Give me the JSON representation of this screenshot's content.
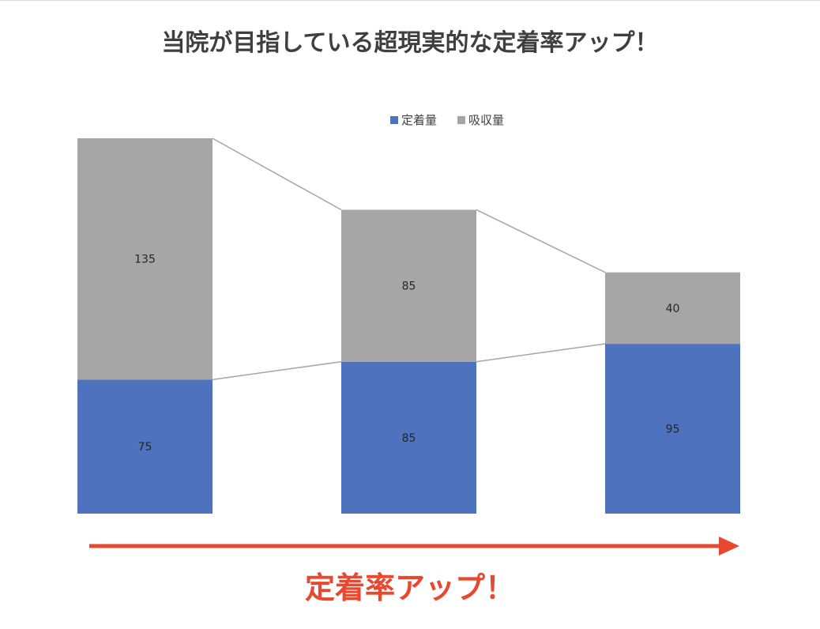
{
  "chart_data": {
    "type": "bar",
    "stacked": true,
    "title": "当院が目指している超現実的な定着率アップ！",
    "categories": [
      "",
      "",
      ""
    ],
    "series": [
      {
        "name": "定着量",
        "values": [
          75,
          85,
          95
        ],
        "color": "#4e72be"
      },
      {
        "name": "吸収量",
        "values": [
          135,
          85,
          40
        ],
        "color": "#a6a6a6"
      }
    ],
    "ylim": [
      0,
      210
    ],
    "legend_position": "top",
    "grid": false,
    "connector_color": "#a6a6a6",
    "xlabel": "",
    "ylabel": ""
  },
  "annotation": {
    "label": "定着率アップ！",
    "color": "#e8482e"
  }
}
